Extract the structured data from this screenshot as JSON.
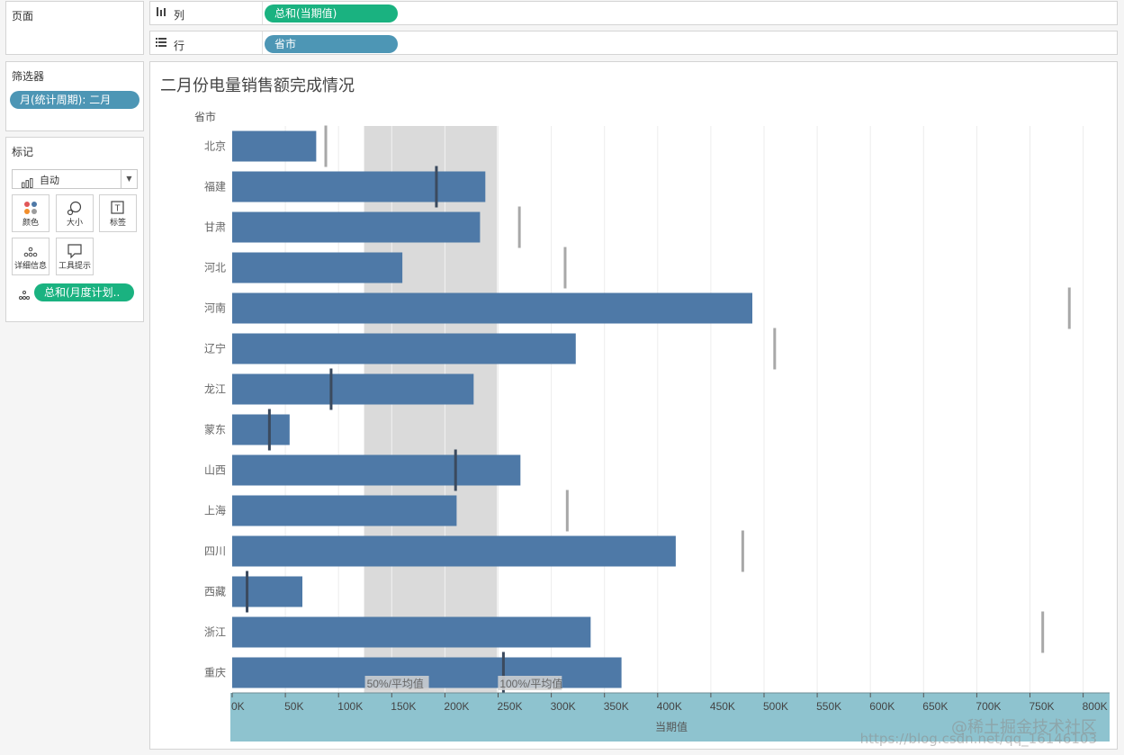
{
  "pages_panel": {
    "title": "页面"
  },
  "columns_shelf": {
    "icon": "columns-icon",
    "label": "列",
    "pill": "总和(当期值)"
  },
  "rows_shelf": {
    "icon": "rows-icon",
    "label": "行",
    "pill": "省市"
  },
  "filters_panel": {
    "title": "筛选器",
    "pill": "月(统计周期): 二月"
  },
  "marks_panel": {
    "title": "标记",
    "mark_type": "自动",
    "buttons": {
      "color": "颜色",
      "size": "大小",
      "label": "标签",
      "detail": "详细信息",
      "tooltip": "工具提示"
    },
    "detail_pill": "总和(月度计划.."
  },
  "colors": {
    "bar": "#4e79a7",
    "band": "#dadada",
    "axis_band": "#8ec3cf",
    "green_pill": "#1ab280",
    "blue_pill": "#4d96b5"
  },
  "chart_data": {
    "type": "bar",
    "title": "二月份电量销售额完成情况",
    "row_header": "省市",
    "xlabel": "当期值",
    "categories": [
      "北京",
      "福建",
      "甘肃",
      "河北",
      "河南",
      "辽宁",
      "龙江",
      "蒙东",
      "山西",
      "上海",
      "四川",
      "西藏",
      "浙江",
      "重庆"
    ],
    "series": [
      {
        "values": [
          79000,
          238000,
          233000,
          160000,
          489000,
          323000,
          227000,
          54000,
          271000,
          211000,
          417000,
          66000,
          337000,
          366000
        ]
      }
    ],
    "reference_marks": [
      88000,
      192000,
      270000,
      313000,
      787000,
      510000,
      93000,
      35000,
      210000,
      315000,
      480000,
      14000,
      762000,
      255000
    ],
    "reference_band": {
      "from": 124000,
      "to": 249000,
      "labels": [
        "50%/平均值",
        "100%/平均值"
      ]
    },
    "xlim": [
      0,
      820000
    ],
    "x_ticks": [
      0,
      50000,
      100000,
      150000,
      200000,
      250000,
      300000,
      350000,
      400000,
      450000,
      500000,
      550000,
      600000,
      650000,
      700000,
      750000,
      800000
    ],
    "x_tick_labels": [
      "0K",
      "50K",
      "100K",
      "150K",
      "200K",
      "250K",
      "300K",
      "350K",
      "400K",
      "450K",
      "500K",
      "550K",
      "600K",
      "650K",
      "700K",
      "750K",
      "800K"
    ],
    "grid": true
  },
  "watermark": {
    "line1": "@稀土掘金技术社区",
    "line2": "https://blog.csdn.net/qq_16146103"
  }
}
